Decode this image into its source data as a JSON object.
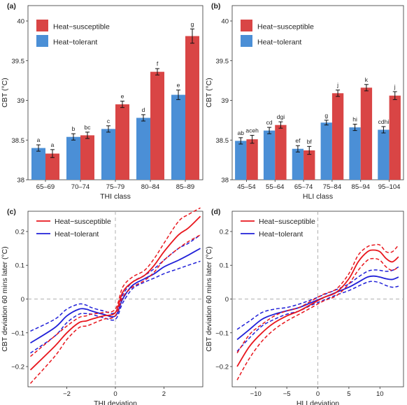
{
  "colors": {
    "susceptible": "#d94545",
    "tolerant": "#4b8fd6",
    "line_red": "#e8161d",
    "line_blue": "#2020d8",
    "panel_bg": "#ffffff",
    "ref_line": "#b0b0b0"
  },
  "chart_data": [
    {
      "panel": "(a)",
      "type": "bar",
      "xlabel": "THI class",
      "ylabel": "CBT (°C)",
      "ylim": [
        38,
        40
      ],
      "yticks": [
        "38",
        "38.5",
        "39",
        "39.5",
        "40"
      ],
      "categories": [
        "65–69",
        "70–74",
        "75–79",
        "80–84",
        "85–89"
      ],
      "legend_position": "top-left",
      "series": [
        {
          "name": "Heat−tolerant",
          "values": [
            38.4,
            38.54,
            38.64,
            38.78,
            39.07
          ],
          "err": [
            0.04,
            0.04,
            0.04,
            0.04,
            0.06
          ],
          "labels": [
            "a",
            "b",
            "c",
            "d",
            "e"
          ]
        },
        {
          "name": "Heat−susceptible",
          "values": [
            38.33,
            38.56,
            38.95,
            39.36,
            39.81
          ],
          "err": [
            0.05,
            0.04,
            0.04,
            0.04,
            0.09
          ],
          "labels": [
            "a",
            "bc",
            "e",
            "f",
            "g"
          ]
        }
      ]
    },
    {
      "panel": "(b)",
      "type": "bar",
      "xlabel": "HLI class",
      "ylabel": "CBT (°C)",
      "ylim": [
        38,
        40
      ],
      "yticks": [
        "38",
        "38.5",
        "39",
        "39.5",
        "40"
      ],
      "categories": [
        "45–54",
        "55–64",
        "65–74",
        "75–84",
        "85–94",
        "95–104"
      ],
      "legend_position": "top-left",
      "series": [
        {
          "name": "Heat−tolerant",
          "values": [
            38.49,
            38.62,
            38.39,
            38.72,
            38.66,
            38.63
          ],
          "err": [
            0.04,
            0.04,
            0.04,
            0.03,
            0.04,
            0.04
          ],
          "labels": [
            "ab",
            "cd",
            "ef",
            "g",
            "hi",
            "cdhi"
          ]
        },
        {
          "name": "Heat−susceptible",
          "values": [
            38.51,
            38.69,
            38.37,
            39.09,
            39.16,
            39.06
          ],
          "err": [
            0.05,
            0.04,
            0.05,
            0.04,
            0.04,
            0.05
          ],
          "labels": [
            "aceh",
            "dgi",
            "bf",
            "j",
            "k",
            "j"
          ]
        }
      ]
    },
    {
      "panel": "(c)",
      "type": "line",
      "xlabel": "THI deviation",
      "ylabel": "CBT deviation 60 mins later (°C)",
      "xlim": [
        -3.6,
        3.6
      ],
      "ylim": [
        -0.26,
        0.26
      ],
      "xticks": [
        -2,
        0,
        2
      ],
      "yticks": [
        -0.2,
        -0.1,
        0,
        0.1,
        0.2
      ],
      "legend_position": "top-left",
      "x": [
        -3.5,
        -2.5,
        -2.0,
        -1.5,
        -1.2,
        -1.0,
        -0.5,
        0.0,
        0.3,
        0.7,
        1.2,
        1.6,
        2.0,
        2.6,
        3.0,
        3.5
      ],
      "series": [
        {
          "name": "Heat−susceptible",
          "values": [
            -0.21,
            -0.14,
            -0.1,
            -0.07,
            -0.065,
            -0.06,
            -0.05,
            -0.04,
            0.02,
            0.05,
            0.07,
            0.1,
            0.14,
            0.19,
            0.21,
            0.245
          ],
          "lower": [
            -0.25,
            -0.17,
            -0.12,
            -0.085,
            -0.08,
            -0.075,
            -0.06,
            -0.05,
            0.005,
            0.035,
            0.055,
            0.08,
            0.115,
            0.15,
            0.17,
            0.19
          ],
          "upper": [
            -0.17,
            -0.11,
            -0.08,
            -0.055,
            -0.05,
            -0.045,
            -0.04,
            -0.03,
            0.035,
            0.065,
            0.085,
            0.12,
            0.165,
            0.23,
            0.25,
            0.27
          ]
        },
        {
          "name": "Heat−tolerant",
          "values": [
            -0.13,
            -0.085,
            -0.05,
            -0.03,
            -0.03,
            -0.035,
            -0.045,
            -0.05,
            0.0,
            0.04,
            0.06,
            0.075,
            0.095,
            0.115,
            0.13,
            0.15
          ],
          "lower": [
            -0.16,
            -0.11,
            -0.07,
            -0.045,
            -0.043,
            -0.045,
            -0.055,
            -0.06,
            -0.012,
            0.03,
            0.05,
            0.062,
            0.075,
            0.09,
            0.1,
            0.112
          ],
          "upper": [
            -0.095,
            -0.06,
            -0.03,
            -0.015,
            -0.018,
            -0.025,
            -0.035,
            -0.04,
            0.012,
            0.05,
            0.07,
            0.09,
            0.115,
            0.15,
            0.165,
            0.19
          ]
        }
      ]
    },
    {
      "panel": "(d)",
      "type": "line",
      "xlabel": "HLI deviation",
      "ylabel": "CBT deviation 60 mins later (°C)",
      "xlim": [
        -13.8,
        13.8
      ],
      "ylim": [
        -0.26,
        0.26
      ],
      "xticks": [
        -10,
        -5,
        0,
        5,
        10
      ],
      "yticks": [
        -0.2,
        -0.1,
        0,
        0.1,
        0.2
      ],
      "legend_position": "top-left",
      "x": [
        -13,
        -11,
        -9,
        -7,
        -5,
        -3,
        -1,
        1,
        3,
        5,
        6.5,
        8,
        9,
        10,
        11,
        12,
        13
      ],
      "series": [
        {
          "name": "Heat−susceptible",
          "values": [
            -0.2,
            -0.14,
            -0.1,
            -0.07,
            -0.05,
            -0.035,
            -0.015,
            0.005,
            0.02,
            0.06,
            0.11,
            0.14,
            0.145,
            0.14,
            0.12,
            0.11,
            0.125
          ],
          "lower": [
            -0.24,
            -0.175,
            -0.125,
            -0.09,
            -0.065,
            -0.045,
            -0.025,
            -0.005,
            0.01,
            0.045,
            0.085,
            0.115,
            0.12,
            0.115,
            0.095,
            0.085,
            0.095
          ],
          "upper": [
            -0.16,
            -0.105,
            -0.075,
            -0.05,
            -0.035,
            -0.025,
            -0.005,
            0.015,
            0.03,
            0.075,
            0.13,
            0.155,
            0.16,
            0.16,
            0.14,
            0.14,
            0.16
          ]
        },
        {
          "name": "Heat−tolerant",
          "values": [
            -0.12,
            -0.09,
            -0.06,
            -0.045,
            -0.035,
            -0.025,
            -0.01,
            0.005,
            0.02,
            0.035,
            0.05,
            0.065,
            0.068,
            0.065,
            0.06,
            0.058,
            0.065
          ],
          "lower": [
            -0.155,
            -0.115,
            -0.08,
            -0.06,
            -0.045,
            -0.035,
            -0.018,
            -0.003,
            0.012,
            0.025,
            0.038,
            0.05,
            0.052,
            0.048,
            0.04,
            0.035,
            0.038
          ],
          "upper": [
            -0.09,
            -0.065,
            -0.04,
            -0.03,
            -0.025,
            -0.015,
            -0.002,
            0.013,
            0.028,
            0.045,
            0.065,
            0.082,
            0.086,
            0.085,
            0.082,
            0.085,
            0.095
          ]
        }
      ]
    }
  ]
}
